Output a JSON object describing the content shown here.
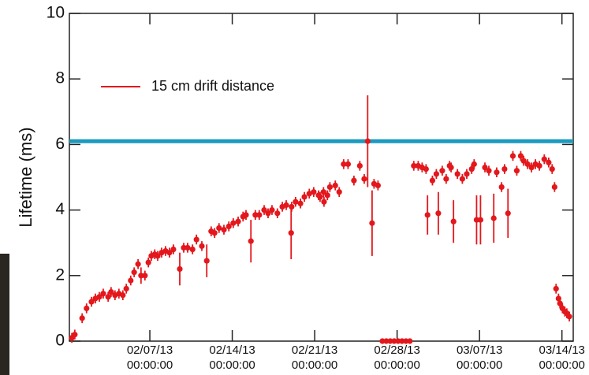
{
  "chart_data": {
    "type": "scatter",
    "y_label": "Lifetime (ms)",
    "xlim": [
      "2013-01-31T04:00",
      "2013-03-14T23:00"
    ],
    "xticks": [
      {
        "value": "2013-02-07T00:00",
        "label": "02/07/13 00:00:00"
      },
      {
        "value": "2013-02-14T00:00",
        "label": "02/14/13 00:00:00"
      },
      {
        "value": "2013-02-21T00:00",
        "label": "02/21/13 00:00:00"
      },
      {
        "value": "2013-02-28T00:00",
        "label": "02/28/13 00:00:00"
      },
      {
        "value": "2013-03-07T00:00",
        "label": "03/07/13 00:00:00"
      },
      {
        "value": "2013-03-14T00:00",
        "label": "03/14/13 00:00:00"
      }
    ],
    "ylim": [
      0,
      10
    ],
    "yticks": [
      0,
      2,
      4,
      6,
      8,
      10
    ],
    "legend": "upper left",
    "reference_line": {
      "value": 6.1,
      "color": "#1a9bc0"
    },
    "series": [
      {
        "name": "15 cm drift distance",
        "color": "#e3171c",
        "x": [
          "2013-01-31T09:00",
          "2013-01-31T15:00",
          "2013-02-01T06:00",
          "2013-02-01T15:00",
          "2013-02-02T01:00",
          "2013-02-02T09:00",
          "2013-02-02T17:00",
          "2013-02-03T01:00",
          "2013-02-03T11:00",
          "2013-02-03T17:00",
          "2013-02-04T01:00",
          "2013-02-04T09:00",
          "2013-02-04T17:00",
          "2013-02-05T00:00",
          "2013-02-05T09:00",
          "2013-02-05T16:00",
          "2013-02-06T00:00",
          "2013-02-06T06:00",
          "2013-02-06T14:00",
          "2013-02-06T21:00",
          "2013-02-07T03:00",
          "2013-02-07T10:00",
          "2013-02-07T16:00",
          "2013-02-08T00:00",
          "2013-02-08T08:00",
          "2013-02-08T16:00",
          "2013-02-09T00:00",
          "2013-02-09T13:00",
          "2013-02-09T21:00",
          "2013-02-10T05:00",
          "2013-02-10T15:00",
          "2013-02-10T23:00",
          "2013-02-11T10:00",
          "2013-02-11T20:00",
          "2013-02-12T05:00",
          "2013-02-12T12:00",
          "2013-02-12T21:00",
          "2013-02-13T07:00",
          "2013-02-13T17:00",
          "2013-02-14T02:00",
          "2013-02-14T12:00",
          "2013-02-14T22:00",
          "2013-02-15T04:00",
          "2013-02-15T14:00",
          "2013-02-15T23:00",
          "2013-02-16T07:00",
          "2013-02-16T17:00",
          "2013-02-17T01:00",
          "2013-02-17T09:00",
          "2013-02-17T20:00",
          "2013-02-18T06:00",
          "2013-02-18T14:00",
          "2013-02-19T00:00",
          "2013-02-19T01:00",
          "2013-02-19T09:00",
          "2013-02-19T19:00",
          "2013-02-20T03:00",
          "2013-02-20T13:00",
          "2013-02-20T22:00",
          "2013-02-21T08:00",
          "2013-02-21T11:00",
          "2013-02-21T18:00",
          "2013-02-21T19:00",
          "2013-02-22T02:00",
          "2013-02-22T07:00",
          "2013-02-22T18:00",
          "2013-02-23T02:00",
          "2013-02-23T11:00",
          "2013-02-23T20:00",
          "2013-02-24T08:00",
          "2013-02-24T20:00",
          "2013-02-25T05:00",
          "2013-02-25T12:00",
          "2013-02-25T21:00",
          "2013-02-26T01:00",
          "2013-02-26T09:00",
          "2013-02-26T18:00",
          "2013-02-27T02:00",
          "2013-02-27T10:00",
          "2013-02-27T18:00",
          "2013-02-28T02:00",
          "2013-02-28T10:00",
          "2013-02-28T18:00",
          "2013-03-01T02:00",
          "2013-03-01T10:00",
          "2013-03-01T19:00",
          "2013-03-02T03:00",
          "2013-03-02T11:00",
          "2013-03-02T14:00",
          "2013-03-03T00:00",
          "2013-03-03T08:00",
          "2013-03-03T12:00",
          "2013-03-03T20:00",
          "2013-03-04T04:00",
          "2013-03-04T11:00",
          "2013-03-04T14:00",
          "2013-03-04T19:00",
          "2013-03-05T03:00",
          "2013-03-05T13:00",
          "2013-03-05T22:00",
          "2013-03-06T08:00",
          "2013-03-06T13:00",
          "2013-03-06T18:00",
          "2013-03-07T02:00",
          "2013-03-07T11:00",
          "2013-03-07T19:00",
          "2013-03-08T05:00",
          "2013-03-08T11:00",
          "2013-03-08T21:00",
          "2013-03-09T03:00",
          "2013-03-09T10:00",
          "2013-03-09T20:00",
          "2013-03-10T04:00",
          "2013-03-10T12:00",
          "2013-03-10T18:00",
          "2013-03-11T02:00",
          "2013-03-11T10:00",
          "2013-03-11T18:00",
          "2013-03-12T02:00",
          "2013-03-12T12:00",
          "2013-03-12T21:00",
          "2013-03-13T04:00",
          "2013-03-13T09:00",
          "2013-03-13T12:00",
          "2013-03-13T17:00",
          "2013-03-13T20:00",
          "2013-03-14T01:00",
          "2013-03-14T06:00",
          "2013-03-14T10:00",
          "2013-03-14T15:00"
        ],
        "values": [
          0.1,
          0.2,
          0.7,
          1.0,
          1.2,
          1.3,
          1.35,
          1.45,
          1.35,
          1.5,
          1.4,
          1.45,
          1.4,
          1.6,
          1.85,
          2.1,
          2.35,
          2.0,
          2.0,
          2.4,
          2.6,
          2.65,
          2.6,
          2.7,
          2.75,
          2.7,
          2.8,
          2.2,
          2.85,
          2.85,
          2.8,
          3.1,
          2.9,
          2.45,
          3.35,
          3.3,
          3.45,
          3.4,
          3.5,
          3.6,
          3.65,
          3.8,
          3.85,
          3.05,
          3.85,
          3.85,
          4.0,
          3.9,
          4.0,
          3.9,
          4.1,
          4.15,
          3.3,
          4.1,
          4.25,
          4.2,
          4.4,
          4.5,
          4.55,
          4.45,
          4.4,
          4.55,
          4.25,
          4.45,
          4.7,
          4.75,
          4.55,
          5.4,
          5.4,
          4.9,
          5.35,
          4.95,
          6.1,
          3.6,
          4.8,
          4.75,
          0,
          0,
          0,
          0,
          0,
          0,
          0,
          0,
          5.35,
          5.35,
          5.3,
          5.25,
          3.85,
          4.9,
          5.1,
          3.9,
          5.2,
          4.95,
          5.35,
          5.3,
          3.65,
          5.1,
          4.95,
          5.1,
          5.25,
          5.4,
          3.7,
          3.7,
          5.3,
          5.2,
          3.75,
          5.15,
          4.7,
          5.25,
          3.9,
          5.65,
          5.2,
          5.65,
          5.5,
          5.4,
          5.3,
          5.4,
          5.35,
          5.55,
          5.45,
          5.25,
          4.7,
          1.6,
          1.3,
          1.15,
          1.0,
          0.9,
          0.85,
          0.75
        ],
        "errors": [
          0.15,
          0.15,
          0.15,
          0.15,
          0.15,
          0.15,
          0.15,
          0.15,
          0.15,
          0.15,
          0.15,
          0.15,
          0.15,
          0.15,
          0.15,
          0.15,
          0.15,
          0.25,
          0.15,
          0.15,
          0.15,
          0.15,
          0.15,
          0.15,
          0.15,
          0.15,
          0.15,
          0.5,
          0.15,
          0.15,
          0.15,
          0.15,
          0.15,
          0.5,
          0.15,
          0.15,
          0.15,
          0.15,
          0.15,
          0.15,
          0.15,
          0.15,
          0.15,
          0.65,
          0.15,
          0.15,
          0.15,
          0.15,
          0.15,
          0.15,
          0.15,
          0.15,
          0.8,
          0.15,
          0.15,
          0.15,
          0.15,
          0.15,
          0.15,
          0.15,
          0.15,
          0.15,
          0.15,
          0.15,
          0.15,
          0.15,
          0.15,
          0.15,
          0.15,
          0.15,
          0.15,
          0.15,
          1.4,
          1.0,
          0.15,
          0.15,
          0.05,
          0.05,
          0.05,
          0.05,
          0.05,
          0.05,
          0.05,
          0.05,
          0.15,
          0.15,
          0.15,
          0.15,
          0.6,
          0.15,
          0.15,
          0.65,
          0.15,
          0.15,
          0.15,
          0.15,
          0.65,
          0.15,
          0.15,
          0.15,
          0.15,
          0.15,
          0.75,
          0.75,
          0.15,
          0.15,
          0.75,
          0.15,
          0.15,
          0.15,
          0.75,
          0.15,
          0.15,
          0.15,
          0.15,
          0.15,
          0.15,
          0.15,
          0.15,
          0.15,
          0.15,
          0.15,
          0.15,
          0.15,
          0.15,
          0.15,
          0.15,
          0.15,
          0.15,
          0.15
        ]
      }
    ]
  }
}
